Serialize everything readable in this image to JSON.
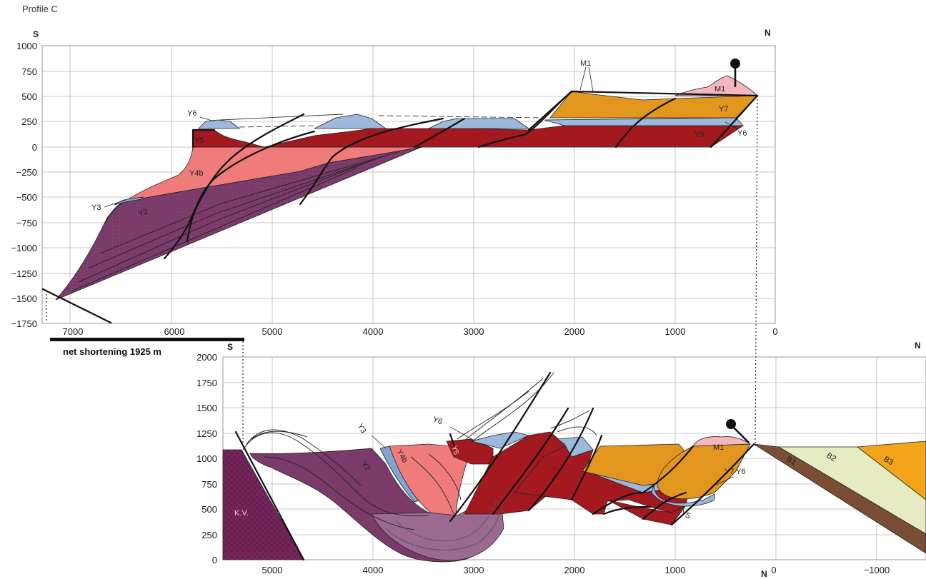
{
  "title": "Profile C",
  "colors": {
    "Y2": "#7a3a6a",
    "Y3": "#7ea6d0",
    "Y4b": "#ef7b7b",
    "Y5": "#a3191f",
    "Y6": "#9cb9dc",
    "Y7": "#e2961d",
    "M1": "#f4b7bd",
    "KV": "#6a1f52",
    "B1": "#7a4e34",
    "B2": "#e7ebc2",
    "B3": "#f3a51a"
  },
  "top_profile": {
    "south_label": "S",
    "north_label": "N",
    "y_ticks": [
      "1000",
      "750",
      "500",
      "250",
      "0",
      "−250",
      "−500",
      "−750",
      "−1000",
      "−1250",
      "−1500",
      "−1750"
    ],
    "x_ticks": [
      "7000",
      "6000",
      "5000",
      "4000",
      "3000",
      "2000",
      "1000",
      "0"
    ],
    "labels": {
      "y6_left": "Y6",
      "y5_left": "Y5",
      "y4b": "Y4b",
      "y3": "Y3",
      "y2": "Y2",
      "m1_top": "M1",
      "m1_right": "M1",
      "y7": "Y7",
      "y5_right": "Y5",
      "y6_right": "Y6"
    }
  },
  "shortening_label": "net shortening 1925 m",
  "bottom_profile": {
    "south_label": "S",
    "north_label": "N",
    "north_bottom": "N",
    "y_ticks": [
      "2000",
      "1750",
      "1500",
      "1250",
      "1000",
      "750",
      "500",
      "250",
      "0"
    ],
    "x_ticks": [
      "5000",
      "4000",
      "3000",
      "2000",
      "1000",
      "0",
      "−1000"
    ],
    "labels": {
      "y3": "Y3",
      "y4b": "Y4b",
      "y2": "Y2",
      "y6": "Y6",
      "y5_mid": "Y5",
      "m1": "M1",
      "y7": "Y7",
      "y6_right": "Y6",
      "y5_right": "Y5",
      "kv": "K.V.",
      "b1": "B1",
      "b2": "B2",
      "b3": "B3"
    }
  }
}
